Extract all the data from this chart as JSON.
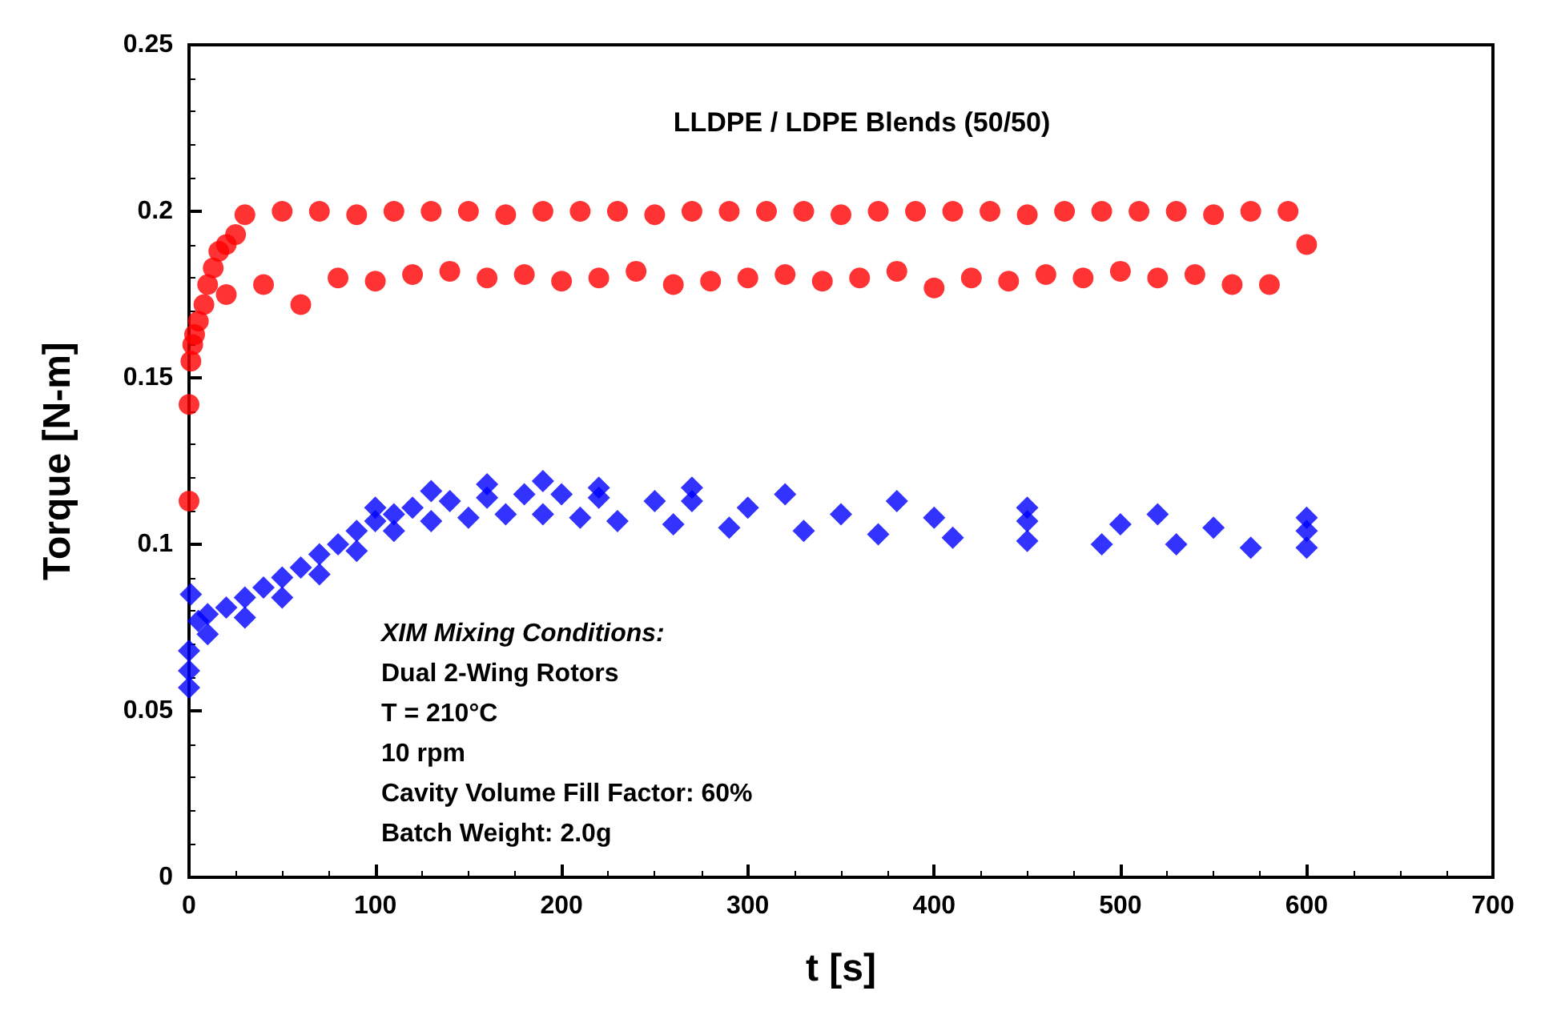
{
  "chart_data": {
    "type": "scatter",
    "title": "LLDPE / LDPE Blends (50/50)",
    "xlabel": "t [s]",
    "ylabel": "Torque [N-m]",
    "xlim": [
      0,
      700
    ],
    "xticks": [
      0,
      100,
      200,
      300,
      400,
      500,
      600,
      700
    ],
    "ylim": [
      0,
      0.25
    ],
    "yticks": [
      0,
      0.05,
      0.1,
      0.15,
      0.2,
      0.25
    ],
    "grid": false,
    "annotations": [
      "XIM Mixing Conditions:",
      "Dual 2-Wing Rotors",
      "T = 210°C",
      "10 rpm",
      "Cavity Volume Fill Factor: 60%",
      "Batch Weight: 2.0g"
    ],
    "series": [
      {
        "color": "#ff0000",
        "marker": "circle",
        "x": [
          0,
          0,
          1,
          2,
          3,
          5,
          8,
          10,
          13,
          16,
          20,
          25
        ],
        "values": [
          0.113,
          0.142,
          0.155,
          0.16,
          0.163,
          0.167,
          0.172,
          0.178,
          0.183,
          0.188,
          0.19,
          0.193
        ]
      },
      {
        "color": "#ff0000",
        "marker": "circle",
        "x": [
          30,
          50,
          70,
          90,
          110,
          130,
          150,
          170,
          190,
          210,
          230,
          250,
          270,
          290,
          310,
          330,
          350,
          370,
          390,
          410,
          430,
          450,
          470,
          490,
          510,
          530,
          550,
          570,
          590
        ],
        "values": [
          0.199,
          0.2,
          0.2,
          0.199,
          0.2,
          0.2,
          0.2,
          0.199,
          0.2,
          0.2,
          0.2,
          0.199,
          0.2,
          0.2,
          0.2,
          0.2,
          0.199,
          0.2,
          0.2,
          0.2,
          0.2,
          0.199,
          0.2,
          0.2,
          0.2,
          0.2,
          0.199,
          0.2,
          0.2
        ]
      },
      {
        "color": "#ff0000",
        "marker": "circle",
        "x": [
          20,
          40,
          60,
          80,
          100,
          120,
          140,
          160,
          180,
          200,
          220,
          240,
          260,
          280,
          300,
          320,
          340,
          360,
          380,
          400,
          420,
          440,
          460,
          480,
          500,
          520,
          540,
          560,
          580,
          600
        ],
        "values": [
          0.175,
          0.178,
          0.172,
          0.18,
          0.179,
          0.181,
          0.182,
          0.18,
          0.181,
          0.179,
          0.18,
          0.182,
          0.178,
          0.179,
          0.18,
          0.181,
          0.179,
          0.18,
          0.182,
          0.177,
          0.18,
          0.179,
          0.181,
          0.18,
          0.182,
          0.18,
          0.181,
          0.178,
          0.178,
          0.19
        ]
      },
      {
        "color": "#0000ff",
        "marker": "diamond",
        "x": [
          0,
          0,
          0,
          1,
          5,
          10,
          20,
          30,
          40,
          50,
          60,
          70,
          80,
          90,
          100,
          110,
          120,
          140,
          160,
          180,
          200,
          220,
          250,
          270,
          300,
          350,
          400,
          450,
          500,
          550,
          600
        ],
        "values": [
          0.057,
          0.062,
          0.068,
          0.085,
          0.077,
          0.079,
          0.081,
          0.084,
          0.087,
          0.09,
          0.093,
          0.097,
          0.1,
          0.104,
          0.107,
          0.109,
          0.111,
          0.113,
          0.114,
          0.115,
          0.115,
          0.114,
          0.113,
          0.113,
          0.111,
          0.109,
          0.108,
          0.107,
          0.106,
          0.105,
          0.104
        ]
      },
      {
        "color": "#0000ff",
        "marker": "diamond",
        "x": [
          10,
          30,
          50,
          70,
          90,
          110,
          130,
          150,
          170,
          190,
          210,
          230,
          260,
          290,
          330,
          370,
          410,
          450,
          490,
          530,
          570,
          600
        ],
        "values": [
          0.073,
          0.078,
          0.084,
          0.091,
          0.098,
          0.104,
          0.107,
          0.108,
          0.109,
          0.109,
          0.108,
          0.107,
          0.106,
          0.105,
          0.104,
          0.103,
          0.102,
          0.101,
          0.1,
          0.1,
          0.099,
          0.099
        ]
      },
      {
        "color": "#0000ff",
        "marker": "diamond",
        "x": [
          100,
          130,
          160,
          190,
          220,
          270,
          320,
          380,
          450,
          520,
          600
        ],
        "values": [
          0.111,
          0.116,
          0.118,
          0.119,
          0.117,
          0.117,
          0.115,
          0.113,
          0.111,
          0.109,
          0.108
        ]
      }
    ]
  }
}
